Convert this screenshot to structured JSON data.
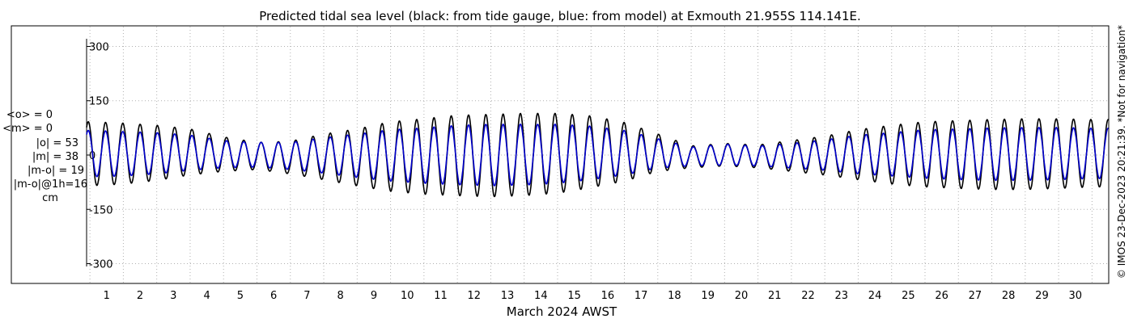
{
  "chart_data": {
    "type": "line",
    "title": "Predicted tidal sea level (black: from tide gauge, blue: from model) at Exmouth 21.955S 114.141E.",
    "xlabel": "March 2024 AWST",
    "ylabel": "",
    "xlim": [
      0.4,
      31.0
    ],
    "ylim": [
      -310,
      310
    ],
    "y_ticks": [
      "300",
      "150",
      "0",
      "-150",
      "-300"
    ],
    "y_tick_values": [
      300,
      150,
      0,
      -150,
      -300
    ],
    "x_tick_labels": [
      "1",
      "2",
      "3",
      "4",
      "5",
      "6",
      "7",
      "8",
      "9",
      "10",
      "11",
      "12",
      "13",
      "14",
      "15",
      "16",
      "17",
      "18",
      "19",
      "20",
      "21",
      "22",
      "23",
      "24",
      "25",
      "26",
      "27",
      "28",
      "29",
      "30"
    ],
    "grid": "dotted",
    "stats": [
      "<o> = 0",
      "<m> = 0",
      "|o| = 53",
      "|m| = 38",
      "|m-o| = 19",
      "|m-o|@1h=16",
      "cm"
    ],
    "credit": "© IMOS 23-Dec-2023 20:21:39. *Not for navigation*",
    "series": [
      {
        "name": "tide gauge",
        "color": "#000000",
        "day": [
          0.5,
          1.5,
          2.5,
          3.5,
          4.5,
          5.5,
          6.5,
          7.5,
          8.5,
          9.5,
          10.5,
          11.5,
          12.5,
          13.5,
          14.5,
          15.5,
          16.5,
          17.5,
          18.5,
          19.5,
          20.5,
          21.5,
          22.5,
          23.5,
          24.5,
          25.5,
          26.5,
          27.5,
          28.5,
          29.5,
          30.5
        ],
        "daily_high": [
          92,
          88,
          82,
          72,
          50,
          35,
          38,
          58,
          72,
          92,
          100,
          110,
          112,
          115,
          115,
          108,
          90,
          58,
          25,
          32,
          28,
          40,
          52,
          70,
          82,
          92,
          95,
          98,
          100,
          100,
          98
        ],
        "daily_low": [
          -85,
          -80,
          -70,
          -55,
          -45,
          -40,
          -52,
          -68,
          -85,
          -100,
          -108,
          -112,
          -115,
          -112,
          -105,
          -90,
          -72,
          -45,
          -35,
          -30,
          -35,
          -45,
          -55,
          -68,
          -80,
          -88,
          -92,
          -95,
          -95,
          -92,
          -88
        ]
      },
      {
        "name": "model",
        "color": "#0000cc",
        "day": [
          0.5,
          1.5,
          2.5,
          3.5,
          4.5,
          5.5,
          6.5,
          7.5,
          8.5,
          9.5,
          10.5,
          11.5,
          12.5,
          13.5,
          14.5,
          15.5,
          16.5,
          17.5,
          18.5,
          19.5,
          20.5,
          21.5,
          22.5,
          23.5,
          24.5,
          25.5,
          26.5,
          27.5,
          28.5,
          29.5,
          30.5
        ],
        "daily_high": [
          68,
          65,
          62,
          55,
          40,
          35,
          35,
          48,
          58,
          70,
          75,
          82,
          85,
          85,
          85,
          80,
          68,
          45,
          22,
          30,
          25,
          32,
          42,
          55,
          62,
          70,
          72,
          75,
          76,
          76,
          74
        ],
        "daily_low": [
          -60,
          -58,
          -52,
          -42,
          -35,
          -33,
          -40,
          -50,
          -62,
          -72,
          -78,
          -82,
          -85,
          -83,
          -78,
          -68,
          -55,
          -36,
          -30,
          -28,
          -30,
          -36,
          -42,
          -52,
          -58,
          -64,
          -68,
          -70,
          -70,
          -68,
          -65
        ]
      }
    ]
  }
}
